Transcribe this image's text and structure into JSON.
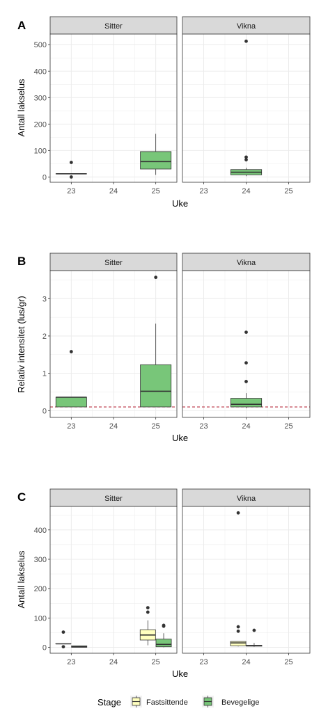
{
  "chart_data": [
    {
      "type": "boxplot",
      "panel_label": "A",
      "facets": [
        "Sitter",
        "Vikna"
      ],
      "xlabel": "Uke",
      "ylabel": "Antall lakselus",
      "x_ticks": [
        "23",
        "24",
        "25"
      ],
      "y_ticks": [
        0,
        100,
        200,
        300,
        400,
        500
      ],
      "ylim": [
        -20,
        540
      ],
      "reference_line": null,
      "boxes": [
        {
          "facet": "Sitter",
          "week": "23",
          "stage": "Bevegelige",
          "min": 12,
          "q1": 12,
          "median": 12,
          "q3": 12,
          "max": 12,
          "outliers": [
            0,
            55
          ]
        },
        {
          "facet": "Sitter",
          "week": "25",
          "stage": "Bevegelige",
          "min": 8,
          "q1": 30,
          "median": 58,
          "q3": 96,
          "max": 163,
          "outliers": []
        },
        {
          "facet": "Vikna",
          "week": "24",
          "stage": "Bevegelige",
          "min": 3,
          "q1": 8,
          "median": 18,
          "q3": 28,
          "max": 35,
          "outliers": [
            65,
            75,
            513
          ]
        }
      ]
    },
    {
      "type": "boxplot",
      "panel_label": "B",
      "facets": [
        "Sitter",
        "Vikna"
      ],
      "xlabel": "Uke",
      "ylabel": "Relativ intensitet (lus/gr)",
      "x_ticks": [
        "23",
        "24",
        "25"
      ],
      "y_ticks": [
        0,
        1,
        2,
        3
      ],
      "ylim": [
        -0.18,
        3.75
      ],
      "reference_line": 0.1,
      "boxes": [
        {
          "facet": "Sitter",
          "week": "23",
          "stage": "Bevegelige",
          "min": 0.1,
          "q1": 0.1,
          "median": 0.36,
          "q3": 0.36,
          "max": 0.36,
          "outliers": [
            1.58
          ]
        },
        {
          "facet": "Sitter",
          "week": "25",
          "stage": "Bevegelige",
          "min": 0.1,
          "q1": 0.1,
          "median": 0.52,
          "q3": 1.23,
          "max": 2.33,
          "outliers": [
            3.57
          ]
        },
        {
          "facet": "Vikna",
          "week": "24",
          "stage": "Bevegelige",
          "min": 0.07,
          "q1": 0.1,
          "median": 0.17,
          "q3": 0.33,
          "max": 0.47,
          "outliers": [
            0.78,
            1.28,
            2.1
          ]
        }
      ]
    },
    {
      "type": "boxplot",
      "panel_label": "C",
      "facets": [
        "Sitter",
        "Vikna"
      ],
      "xlabel": "Uke",
      "ylabel": "Antall lakselus",
      "x_ticks": [
        "23",
        "24",
        "25"
      ],
      "y_ticks": [
        0,
        100,
        200,
        300,
        400
      ],
      "ylim": [
        -20,
        480
      ],
      "reference_line": null,
      "boxes": [
        {
          "facet": "Sitter",
          "week": "23",
          "stage": "Fastsittende",
          "min": 12,
          "q1": 12,
          "median": 12,
          "q3": 12,
          "max": 12,
          "outliers": [
            2,
            52
          ]
        },
        {
          "facet": "Sitter",
          "week": "23",
          "stage": "Bevegelige",
          "min": 0,
          "q1": 0,
          "median": 2,
          "q3": 5,
          "max": 6,
          "outliers": []
        },
        {
          "facet": "Sitter",
          "week": "25",
          "stage": "Fastsittende",
          "min": 7,
          "q1": 25,
          "median": 42,
          "q3": 60,
          "max": 92,
          "outliers": [
            120,
            135
          ]
        },
        {
          "facet": "Sitter",
          "week": "25",
          "stage": "Bevegelige",
          "min": 0,
          "q1": 2,
          "median": 10,
          "q3": 28,
          "max": 48,
          "outliers": [
            72,
            75
          ]
        },
        {
          "facet": "Vikna",
          "week": "24",
          "stage": "Fastsittende",
          "min": 3,
          "q1": 5,
          "median": 15,
          "q3": 20,
          "max": 20,
          "outliers": [
            55,
            70,
            458
          ]
        },
        {
          "facet": "Vikna",
          "week": "24",
          "stage": "Bevegelige",
          "min": 2,
          "q1": 4,
          "median": 6,
          "q3": 7,
          "max": 15,
          "outliers": [
            58
          ]
        }
      ]
    }
  ],
  "legend": {
    "title": "Stage",
    "placement": "bottom",
    "items": [
      {
        "label": "Fastsittende",
        "color": "#ffffbf"
      },
      {
        "label": "Bevegelige",
        "color": "#78c679"
      }
    ]
  },
  "colors": {
    "strip_fill": "#d9d9d9",
    "grid": "#ebebeb",
    "reference_line": "#b2182b"
  }
}
